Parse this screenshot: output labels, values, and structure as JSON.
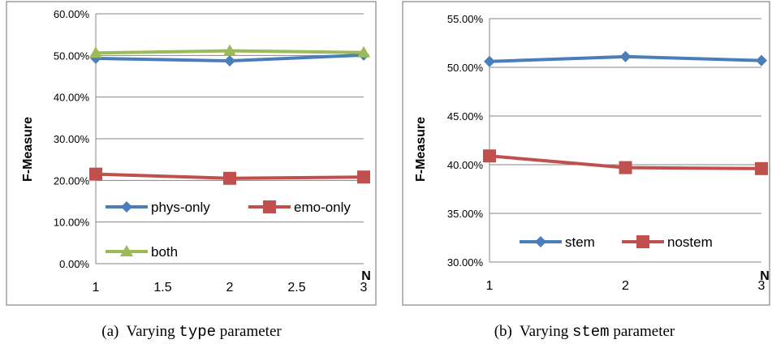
{
  "chart_data": [
    {
      "type": "line",
      "caption_prefix": "(a)  Varying ",
      "caption_code": "type",
      "caption_suffix": " parameter",
      "ylabel": "F-Measure",
      "xlabel": "N",
      "x": [
        1,
        2,
        3
      ],
      "xlim": [
        1,
        3
      ],
      "xticks": [
        "1",
        "1.5",
        "2",
        "2.5",
        "3"
      ],
      "ylim": [
        0,
        0.6
      ],
      "yticks": [
        "0.00%",
        "10.00%",
        "20.00%",
        "30.00%",
        "40.00%",
        "50.00%",
        "60.00%"
      ],
      "grid": true,
      "legend_placement": "bottom-left",
      "series": [
        {
          "name": "phys-only",
          "values": [
            0.493,
            0.487,
            0.501
          ],
          "color": "#4a7ebb",
          "marker": "diamond"
        },
        {
          "name": "emo-only",
          "values": [
            0.215,
            0.205,
            0.208
          ],
          "color": "#c0504d",
          "marker": "square"
        },
        {
          "name": "both",
          "values": [
            0.506,
            0.511,
            0.507
          ],
          "color": "#9bbb59",
          "marker": "triangle"
        }
      ]
    },
    {
      "type": "line",
      "caption_prefix": "(b)  Varying ",
      "caption_code": "stem",
      "caption_suffix": " parameter",
      "ylabel": "F-Measure",
      "xlabel": "N",
      "x": [
        1,
        2,
        3
      ],
      "xlim": [
        1,
        3
      ],
      "xticks": [
        "1",
        "2",
        "3"
      ],
      "ylim": [
        0.3,
        0.55
      ],
      "yticks": [
        "30.00%",
        "35.00%",
        "40.00%",
        "45.00%",
        "50.00%",
        "55.00%"
      ],
      "grid": true,
      "legend_placement": "bottom",
      "series": [
        {
          "name": "stem",
          "values": [
            0.506,
            0.511,
            0.507
          ],
          "color": "#4a7ebb",
          "marker": "diamond"
        },
        {
          "name": "nostem",
          "values": [
            0.409,
            0.397,
            0.396
          ],
          "color": "#c0504d",
          "marker": "square"
        }
      ]
    }
  ]
}
